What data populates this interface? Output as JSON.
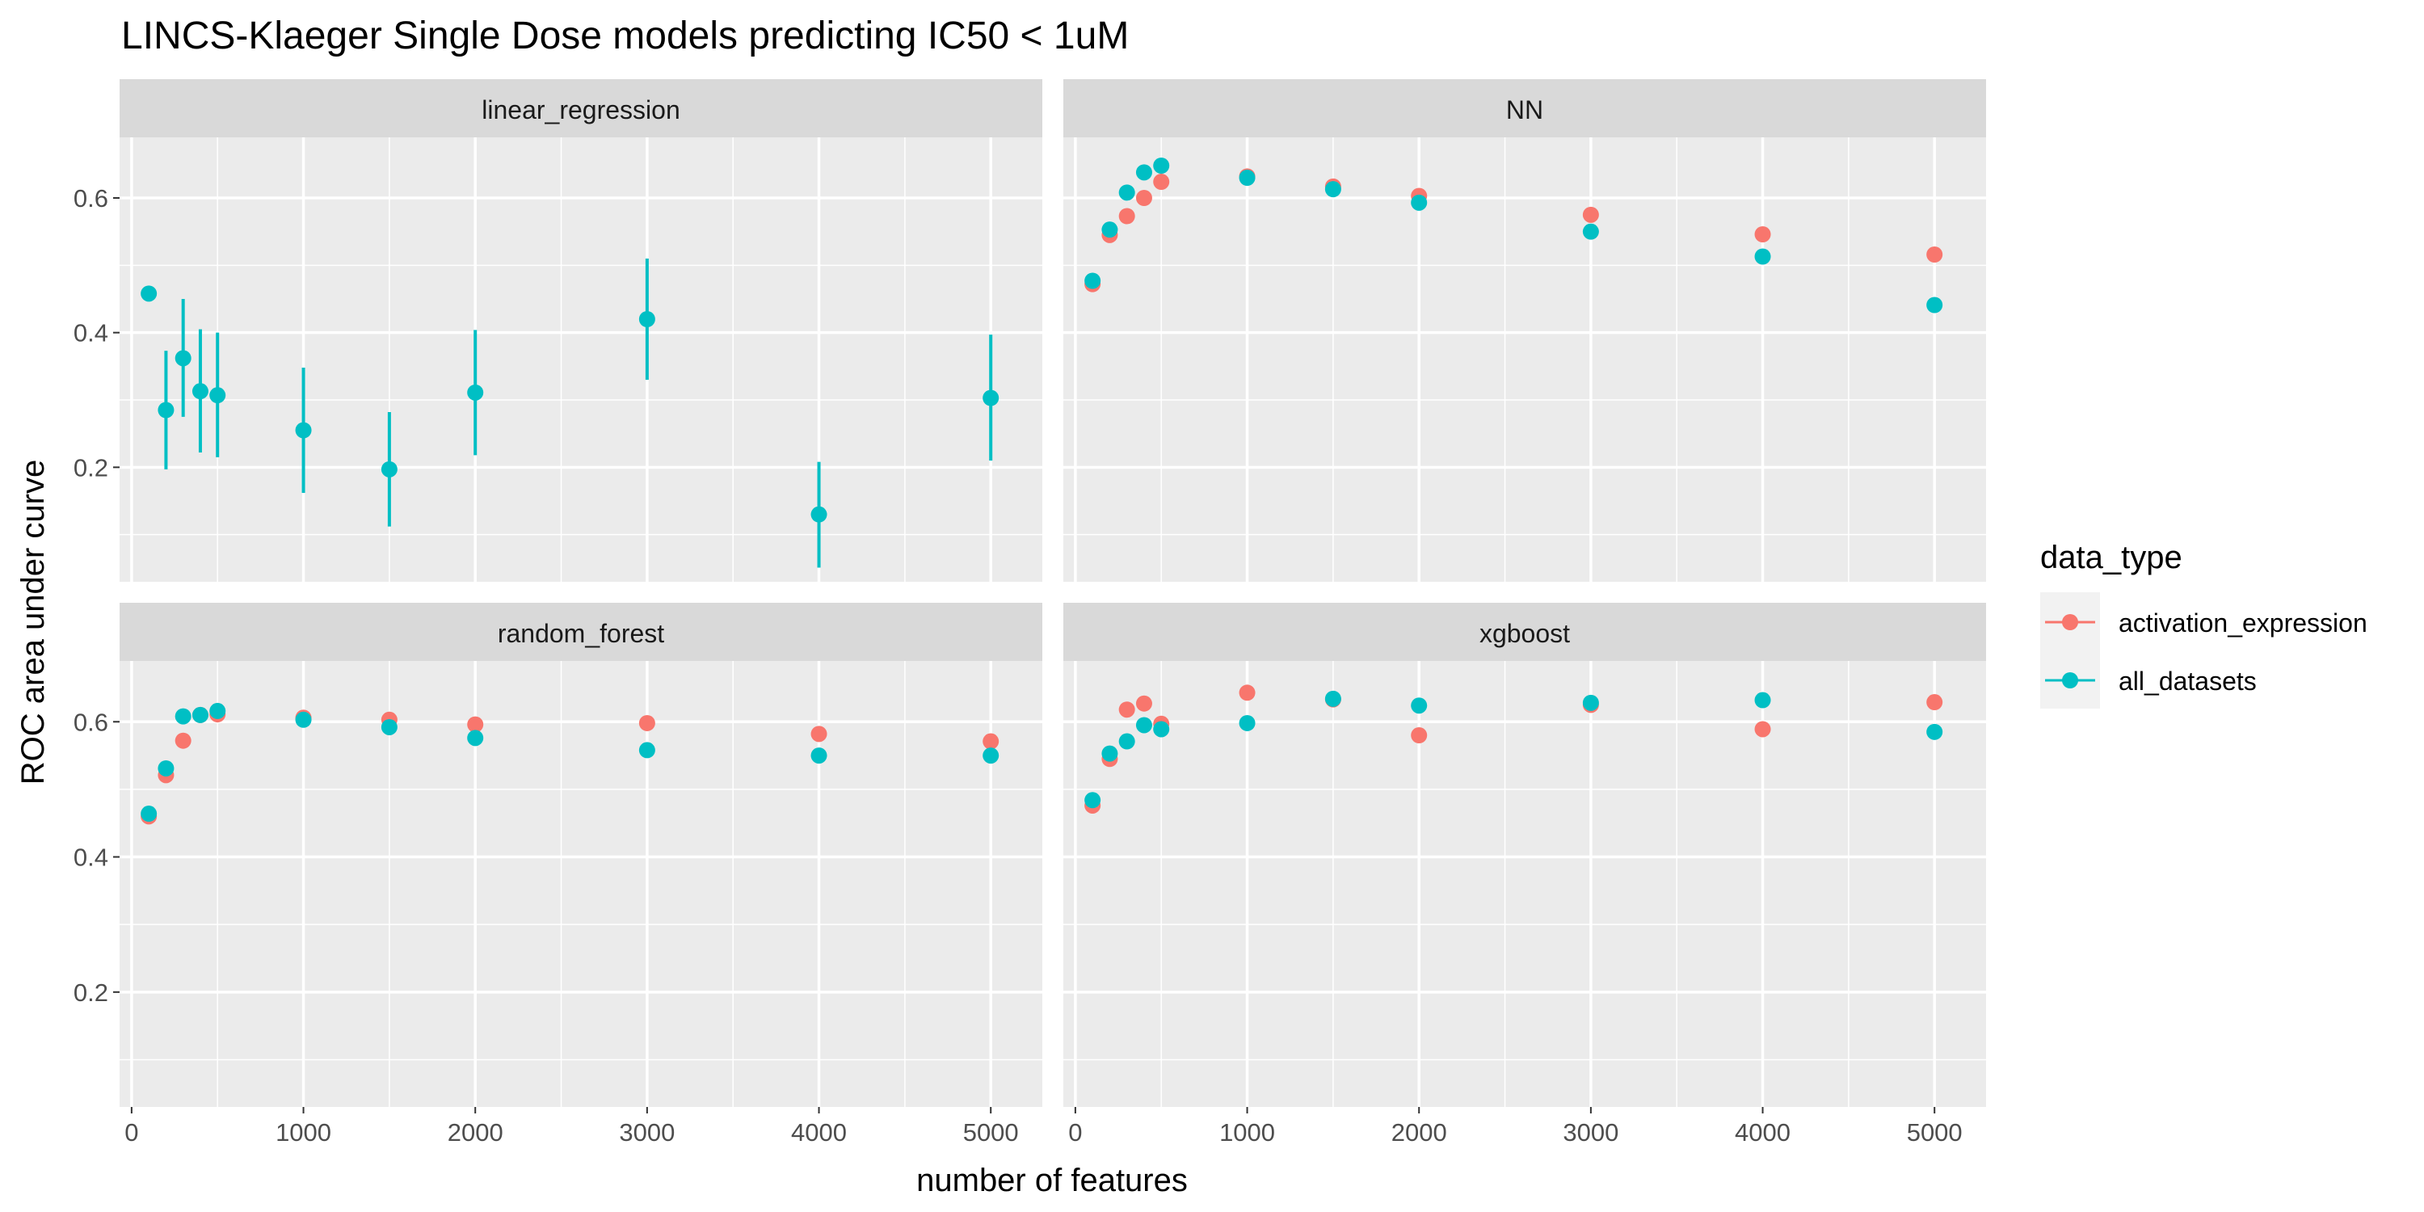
{
  "chart_data": {
    "type": "scatter",
    "title": "LINCS-Klaeger Single Dose models predicting IC50 < 1uM",
    "xlabel": "number of features",
    "ylabel": "ROC area under curve",
    "xlim": [
      -70,
      5300
    ],
    "ylim": [
      0.03,
      0.69
    ],
    "x_ticks": [
      0,
      1000,
      2000,
      3000,
      4000,
      5000
    ],
    "y_ticks": [
      0.2,
      0.4,
      0.6
    ],
    "grid": true,
    "legend": {
      "title": "data_type",
      "position": "right",
      "entries": [
        {
          "label": "activation_expression",
          "color": "#F8766D"
        },
        {
          "label": "all_datasets",
          "color": "#00BFC4"
        }
      ]
    },
    "panels": [
      {
        "name": "linear_regression",
        "series": [
          {
            "name": "all_datasets",
            "x": [
              100,
              200,
              300,
              400,
              500,
              1000,
              1500,
              2000,
              3000,
              4000,
              5000
            ],
            "y": [
              0.458,
              0.285,
              0.362,
              0.313,
              0.307,
              0.255,
              0.197,
              0.311,
              0.42,
              0.13,
              0.303
            ],
            "ymin": [
              null,
              0.197,
              0.275,
              0.222,
              0.215,
              0.162,
              0.112,
              0.218,
              0.33,
              0.051,
              0.21
            ],
            "ymax": [
              null,
              0.373,
              0.45,
              0.405,
              0.4,
              0.348,
              0.282,
              0.404,
              0.51,
              0.208,
              0.397
            ]
          }
        ]
      },
      {
        "name": "NN",
        "series": [
          {
            "name": "activation_expression",
            "x": [
              100,
              200,
              300,
              400,
              500,
              1000,
              1500,
              2000,
              3000,
              4000,
              5000
            ],
            "y": [
              0.472,
              0.545,
              0.573,
              0.6,
              0.624,
              0.632,
              0.617,
              0.603,
              0.575,
              0.546,
              0.516
            ]
          },
          {
            "name": "all_datasets",
            "x": [
              100,
              200,
              300,
              400,
              500,
              1000,
              1500,
              2000,
              3000,
              4000,
              5000
            ],
            "y": [
              0.477,
              0.553,
              0.608,
              0.638,
              0.648,
              0.63,
              0.613,
              0.593,
              0.55,
              0.513,
              0.441
            ]
          }
        ]
      },
      {
        "name": "random_forest",
        "series": [
          {
            "name": "activation_expression",
            "x": [
              100,
              200,
              300,
              400,
              500,
              1000,
              1500,
              2000,
              3000,
              4000,
              5000
            ],
            "y": [
              0.46,
              0.521,
              0.572,
              0.61,
              0.611,
              0.606,
              0.603,
              0.596,
              0.598,
              0.582,
              0.571
            ]
          },
          {
            "name": "all_datasets",
            "x": [
              100,
              200,
              300,
              400,
              500,
              1000,
              1500,
              2000,
              3000,
              4000,
              5000
            ],
            "y": [
              0.464,
              0.531,
              0.608,
              0.61,
              0.616,
              0.603,
              0.592,
              0.576,
              0.558,
              0.55,
              0.55
            ]
          }
        ]
      },
      {
        "name": "xgboost",
        "series": [
          {
            "name": "activation_expression",
            "x": [
              100,
              200,
              300,
              400,
              500,
              1000,
              1500,
              2000,
              3000,
              4000,
              5000
            ],
            "y": [
              0.476,
              0.545,
              0.618,
              0.627,
              0.597,
              0.643,
              0.633,
              0.58,
              0.625,
              0.589,
              0.629
            ]
          },
          {
            "name": "all_datasets",
            "x": [
              100,
              200,
              300,
              400,
              500,
              1000,
              1500,
              2000,
              3000,
              4000,
              5000
            ],
            "y": [
              0.484,
              0.553,
              0.571,
              0.595,
              0.589,
              0.598,
              0.634,
              0.624,
              0.628,
              0.632,
              0.585
            ]
          }
        ]
      }
    ]
  }
}
